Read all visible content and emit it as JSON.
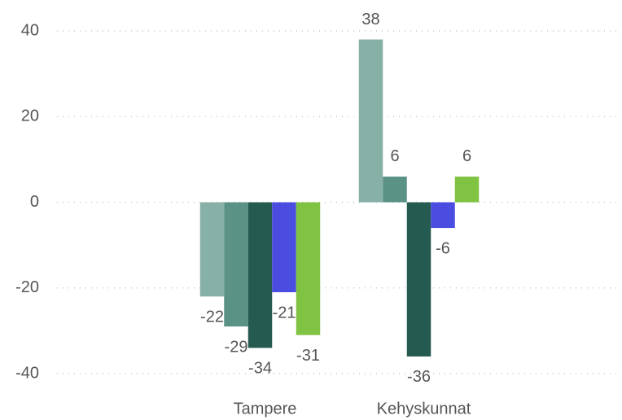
{
  "chart_data": {
    "type": "bar",
    "categories": [
      "Tampere",
      "Kehyskunnat"
    ],
    "series": [
      {
        "color": "#87b0a6",
        "values": [
          -22,
          38
        ]
      },
      {
        "color": "#5a9285",
        "values": [
          -29,
          6
        ]
      },
      {
        "color": "#255a50",
        "values": [
          -34,
          -36
        ]
      },
      {
        "color": "#4a4de0",
        "values": [
          -21,
          -6
        ]
      },
      {
        "color": "#80c241",
        "values": [
          -31,
          6
        ]
      }
    ],
    "ylim": [
      -40,
      40
    ],
    "yticks": [
      -40,
      -20,
      0,
      20,
      40
    ],
    "grid": true
  }
}
